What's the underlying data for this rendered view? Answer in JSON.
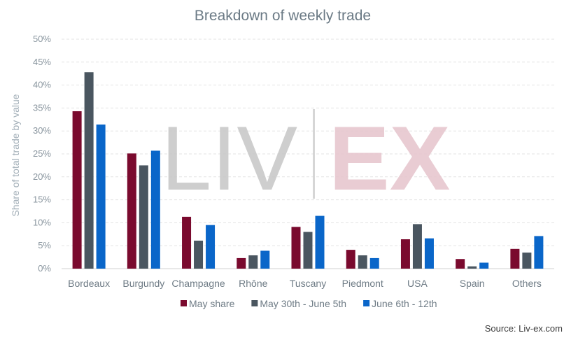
{
  "watermark": {
    "left": "LIV",
    "right": "EX",
    "left_color": "#c9c9c9",
    "right_color": "#e7c7cf"
  },
  "source": "Source: Liv-ex.com",
  "chart_data": {
    "type": "bar",
    "title": "Breakdown of weekly trade",
    "xlabel": "",
    "ylabel": "Share of total trade by value",
    "ylim": [
      0,
      50
    ],
    "yticks": [
      0,
      5,
      10,
      15,
      20,
      25,
      30,
      35,
      40,
      45,
      50
    ],
    "ytick_labels": [
      "0%",
      "5%",
      "10%",
      "15%",
      "20%",
      "25%",
      "30%",
      "35%",
      "40%",
      "45%",
      "50%"
    ],
    "grid": true,
    "legend_position": "bottom",
    "categories": [
      "Bordeaux",
      "Burgundy",
      "Champagne",
      "Rhône",
      "Tuscany",
      "Piedmont",
      "USA",
      "Spain",
      "Others"
    ],
    "series": [
      {
        "name": "May share",
        "color": "#7a0a2e",
        "values": [
          34.3,
          25.1,
          11.3,
          2.3,
          9.1,
          4.1,
          6.4,
          2.1,
          4.3
        ]
      },
      {
        "name": "May 30th - June 5th",
        "color": "#4a5660",
        "values": [
          42.8,
          22.5,
          6.1,
          2.9,
          8.0,
          2.9,
          9.7,
          0.5,
          3.5
        ]
      },
      {
        "name": "June 6th - 12th",
        "color": "#0a66c9",
        "values": [
          31.4,
          25.7,
          9.5,
          3.9,
          11.5,
          2.3,
          6.6,
          1.3,
          7.1
        ]
      }
    ]
  }
}
